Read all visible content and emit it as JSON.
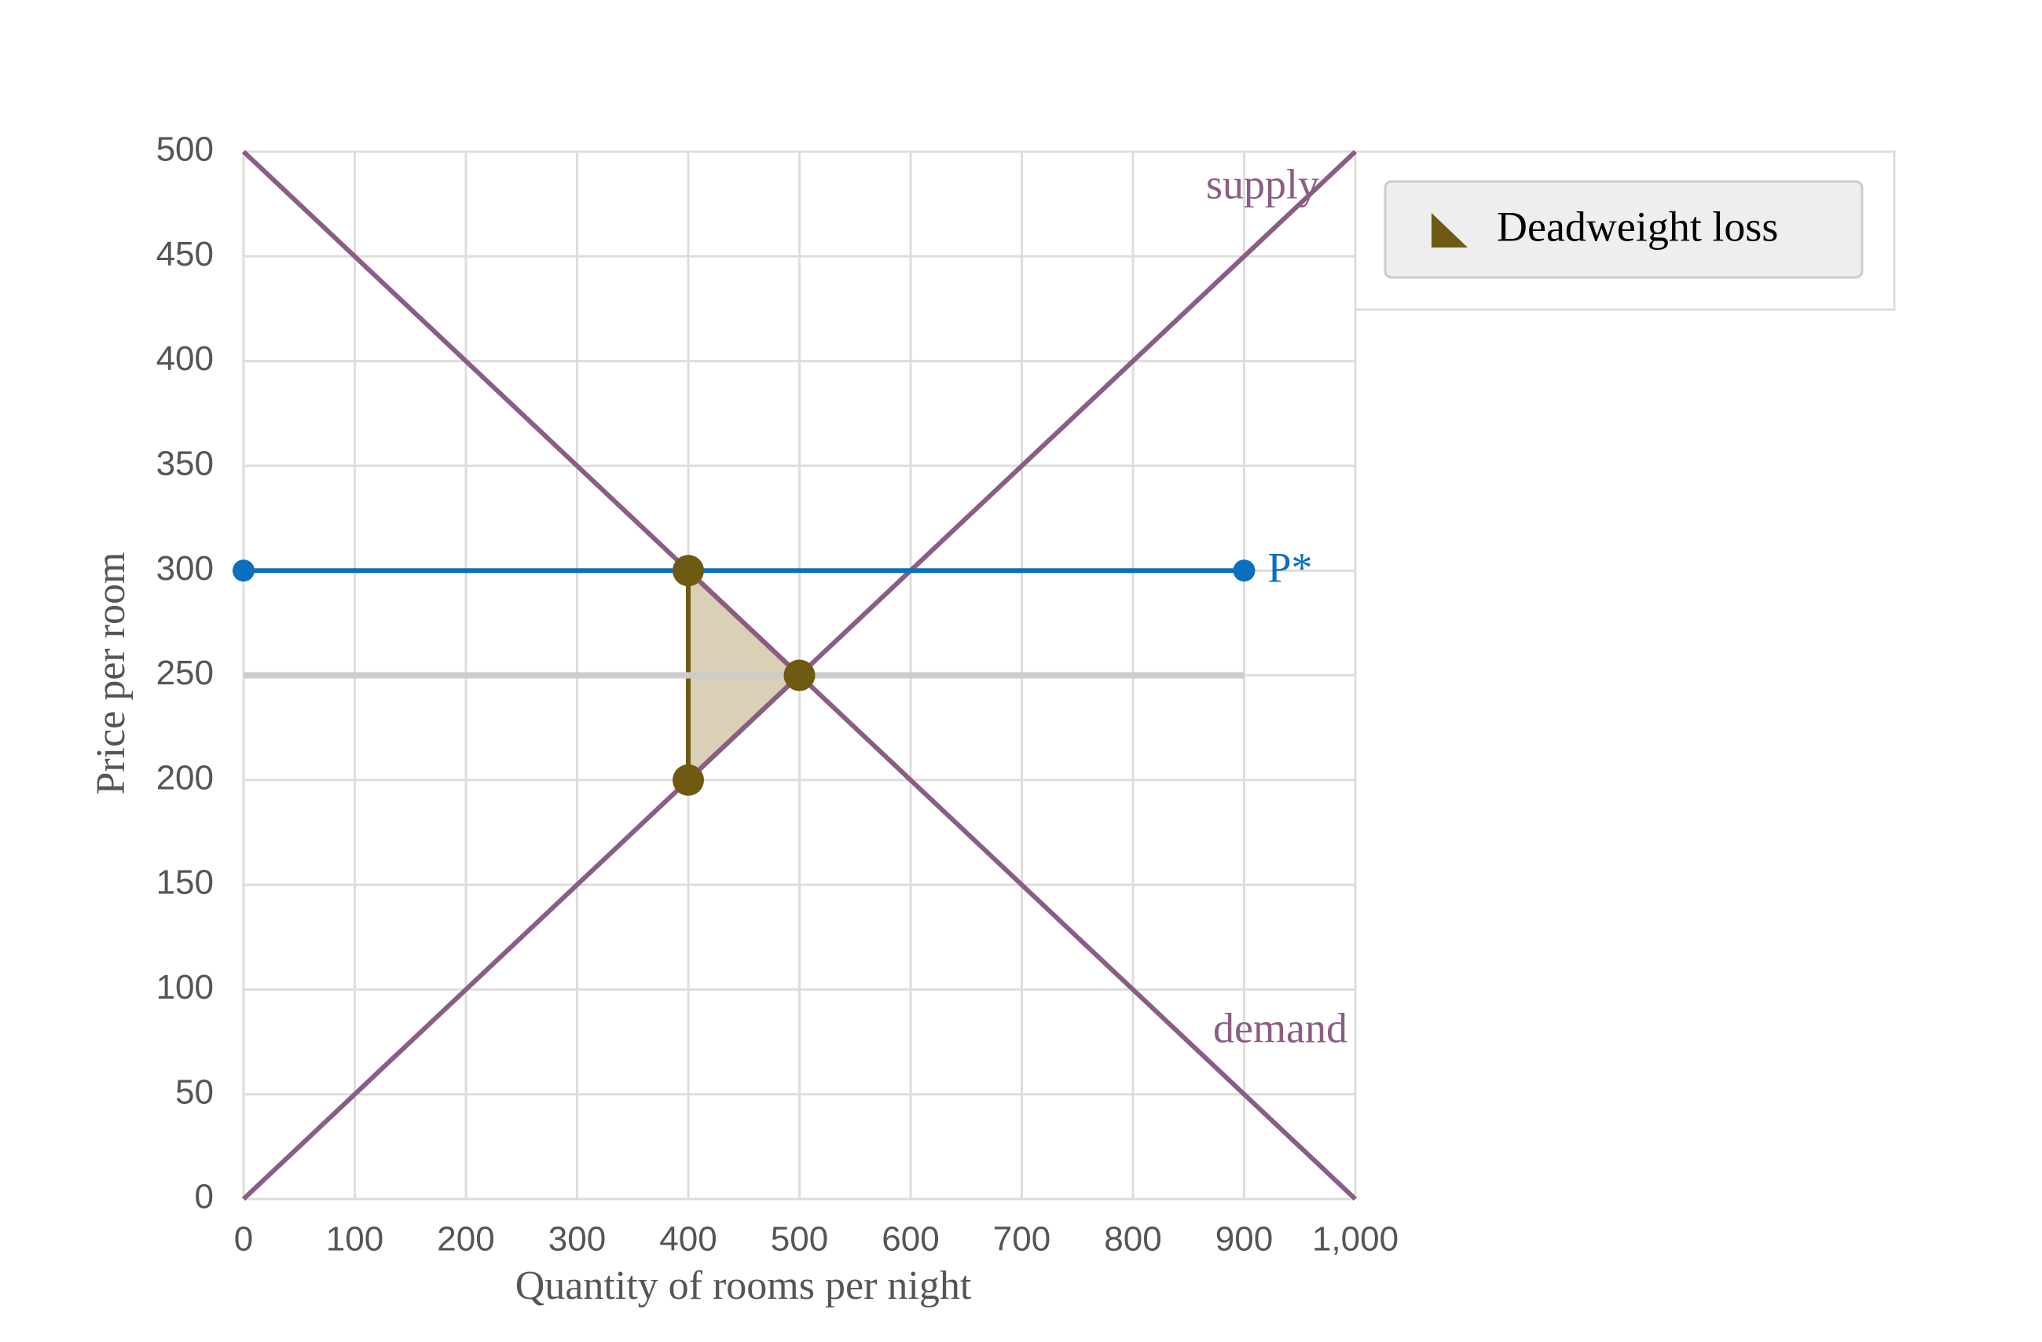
{
  "chart_data": {
    "type": "line",
    "x_label": "Quantity of rooms per night",
    "y_label": "Price per room",
    "xlim": [
      0,
      1000
    ],
    "ylim": [
      0,
      500
    ],
    "xticks": [
      0,
      100,
      200,
      300,
      400,
      500,
      600,
      700,
      800,
      900,
      {
        "value": 1000,
        "label": "1,000"
      }
    ],
    "yticks": [
      0,
      50,
      100,
      150,
      200,
      250,
      300,
      350,
      400,
      450,
      500
    ],
    "grid": true,
    "legend": "right",
    "series": [
      {
        "color": "#cccccc",
        "x": [
          0,
          900
        ],
        "values": [
          250,
          250
        ]
      },
      {
        "name": "supply",
        "color": "#8b5d84",
        "x": [
          0,
          1000
        ],
        "values": [
          0,
          500
        ]
      },
      {
        "name": "demand",
        "color": "#8b5d84",
        "x": [
          0,
          1000
        ],
        "values": [
          500,
          0
        ]
      },
      {
        "name": "P*",
        "color": "#0a6fbf",
        "x": [
          0,
          900
        ],
        "values": [
          300,
          300
        ],
        "markers": true
      }
    ],
    "areas": [
      {
        "name": "Deadweight loss",
        "color": "#6e5a12",
        "x": [
          400,
          500,
          400
        ],
        "values": [
          300,
          250,
          200
        ]
      }
    ]
  }
}
